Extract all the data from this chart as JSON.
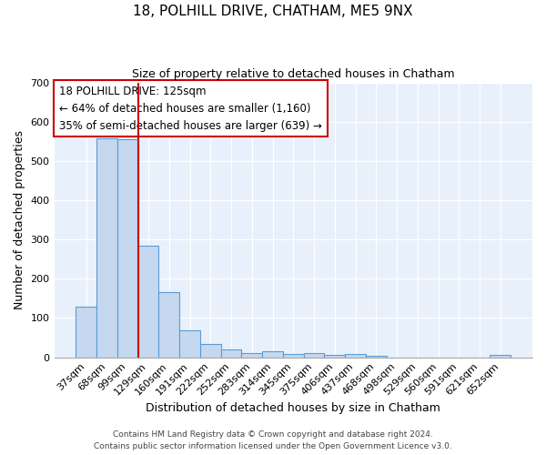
{
  "title1": "18, POLHILL DRIVE, CHATHAM, ME5 9NX",
  "title2": "Size of property relative to detached houses in Chatham",
  "xlabel": "Distribution of detached houses by size in Chatham",
  "ylabel": "Number of detached properties",
  "bar_labels": [
    "37sqm",
    "68sqm",
    "99sqm",
    "129sqm",
    "160sqm",
    "191sqm",
    "222sqm",
    "252sqm",
    "283sqm",
    "314sqm",
    "345sqm",
    "375sqm",
    "406sqm",
    "437sqm",
    "468sqm",
    "498sqm",
    "529sqm",
    "560sqm",
    "591sqm",
    "621sqm",
    "652sqm"
  ],
  "bar_values": [
    128,
    557,
    555,
    285,
    165,
    68,
    33,
    20,
    10,
    15,
    8,
    10,
    5,
    8,
    3,
    0,
    0,
    0,
    0,
    0,
    5
  ],
  "bar_color": "#c5d8f0",
  "bar_edge_color": "#5b9bd5",
  "vline_color": "#cc0000",
  "annotation_text": "18 POLHILL DRIVE: 125sqm\n← 64% of detached houses are smaller (1,160)\n35% of semi-detached houses are larger (639) →",
  "ylim": [
    0,
    700
  ],
  "yticks": [
    0,
    100,
    200,
    300,
    400,
    500,
    600,
    700
  ],
  "footer1": "Contains HM Land Registry data © Crown copyright and database right 2024.",
  "footer2": "Contains public sector information licensed under the Open Government Licence v3.0.",
  "plot_bg_color": "#e8f1fb",
  "fig_bg_color": "#ffffff",
  "grid_color": "#ffffff"
}
